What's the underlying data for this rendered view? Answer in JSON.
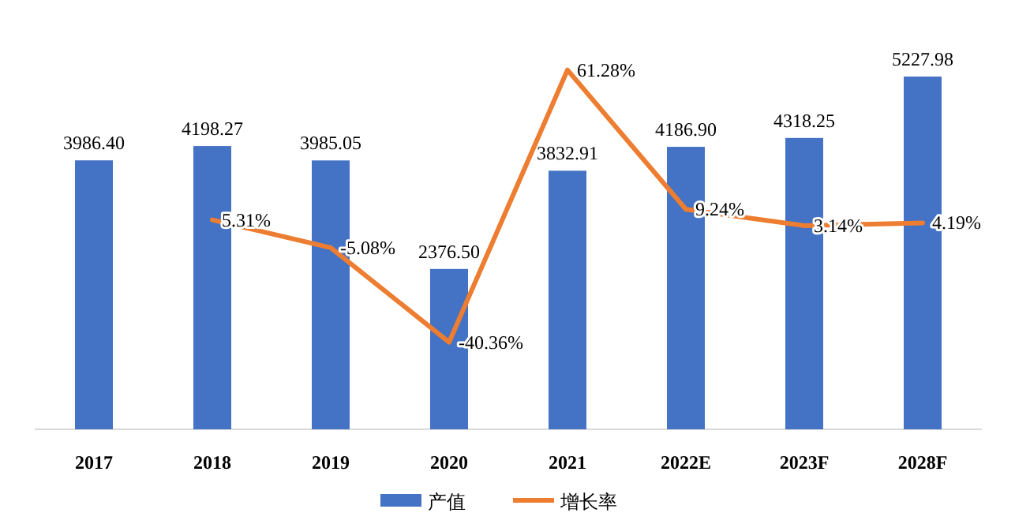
{
  "chart_data": {
    "type": "bar",
    "categories": [
      "2017",
      "2018",
      "2019",
      "2020",
      "2021",
      "2022E",
      "2023F",
      "2028F"
    ],
    "series": [
      {
        "name": "产值",
        "color": "#4472c4",
        "values": [
          3986.4,
          4198.27,
          3985.05,
          2376.5,
          3832.91,
          4186.9,
          4318.25,
          5227.98
        ],
        "value_labels": [
          "3986.40",
          "4198.27",
          "3985.05",
          "2376.50",
          "3832.91",
          "4186.90",
          "4318.25",
          "5227.98"
        ]
      },
      {
        "name": "增长率",
        "type": "line",
        "axis": "y2",
        "color": "#ed7d31",
        "values": [
          null,
          5.31,
          -5.08,
          -40.36,
          61.28,
          9.24,
          3.14,
          4.19
        ],
        "value_labels": [
          null,
          "5.31%",
          "-5.08%",
          "-40.36%",
          "61.28%",
          "9.24%",
          "3.14%",
          "4.19%"
        ]
      }
    ],
    "legend": "bottom",
    "tick_labels": "x",
    "marker": "none"
  }
}
